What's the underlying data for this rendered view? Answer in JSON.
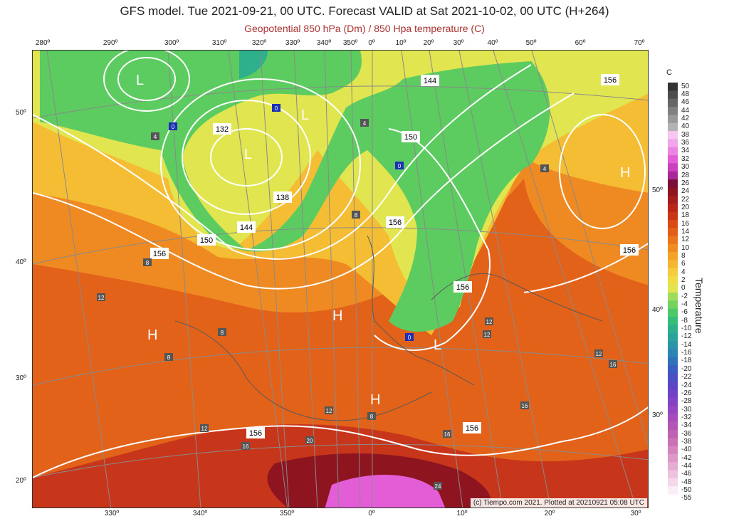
{
  "header": {
    "title": "GFS model. Tue 2021-09-21, 00 UTC. Forecast VALID at Sat 2021-10-02, 00 UTC (H+264)",
    "subtitle": "Geopotential 850 hPa (Dm) / 850 Hpa temperature (C)"
  },
  "axes": {
    "top_longitudes": [
      "280º",
      "290º",
      "300º",
      "310º",
      "320º",
      "330º",
      "340º",
      "350º",
      "0º",
      "10º",
      "20º",
      "30º",
      "40º",
      "50º",
      "60º",
      "70º"
    ],
    "bottom_longitudes": [
      "330º",
      "340º",
      "350º",
      "0º",
      "10º",
      "20º",
      "30º"
    ],
    "left_latitudes": [
      "50º",
      "40º",
      "30º",
      "20º"
    ],
    "right_latitudes": [
      "50º",
      "40º",
      "30º"
    ]
  },
  "legend": {
    "unit": "C",
    "name": "Temperature",
    "values": [
      "50",
      "48",
      "46",
      "44",
      "42",
      "40",
      "38",
      "36",
      "34",
      "32",
      "30",
      "28",
      "26",
      "24",
      "22",
      "20",
      "18",
      "16",
      "14",
      "12",
      "10",
      "8",
      "6",
      "4",
      "2",
      "0",
      "-2",
      "-4",
      "-6",
      "-8",
      "-10",
      "-12",
      "-14",
      "-16",
      "-18",
      "-20",
      "-22",
      "-24",
      "-26",
      "-28",
      "-30",
      "-32",
      "-34",
      "-36",
      "-38",
      "-40",
      "-42",
      "-44",
      "-46",
      "-48",
      "-50",
      "-55"
    ],
    "colors": [
      "#333333",
      "#4d4d4d",
      "#666666",
      "#808080",
      "#999999",
      "#b3b3b3",
      "#f7c6f0",
      "#f2a6ea",
      "#ec84e2",
      "#e35dd6",
      "#cc3fbe",
      "#a8289a",
      "#7a0f3a",
      "#8e1420",
      "#a31d1b",
      "#b82618",
      "#c93516",
      "#d94a15",
      "#e25f17",
      "#ea751b",
      "#f08c22",
      "#f3a22a",
      "#f5b733",
      "#f7cc3c",
      "#f0dc45",
      "#e1e650",
      "#9fdc5c",
      "#72d45e",
      "#4ec96a",
      "#36bd79",
      "#2db08b",
      "#2aa39c",
      "#2a95a8",
      "#2c85b2",
      "#3072ba",
      "#3a5ec0",
      "#4a4fc4",
      "#5d46c6",
      "#7142c6",
      "#8442c4",
      "#9646c0",
      "#a64dbb",
      "#b456b6",
      "#c062b3",
      "#cb72b5",
      "#d584bd",
      "#de98c7",
      "#e6add2",
      "#eec3de",
      "#f5d9ea",
      "#fbeef6",
      "#ffffff"
    ]
  },
  "map": {
    "geopotential_labels": [
      "132",
      "138",
      "144",
      "144",
      "150",
      "150",
      "156",
      "156",
      "156",
      "156",
      "156",
      "156",
      "156"
    ],
    "pressure_centers": [
      "L",
      "L",
      "L",
      "L",
      "H",
      "H",
      "H",
      "H"
    ],
    "station_temperatures": [
      "12",
      "12",
      "12",
      "12",
      "12",
      "12",
      "8",
      "8",
      "8",
      "8",
      "8",
      "16",
      "16",
      "16",
      "16",
      "20",
      "24",
      "4",
      "4",
      "4",
      "0",
      "0",
      "0",
      "0"
    ]
  },
  "credit": "(c) Tiempo.com 2021. Plotted at 20210921 05:08 UTC"
}
